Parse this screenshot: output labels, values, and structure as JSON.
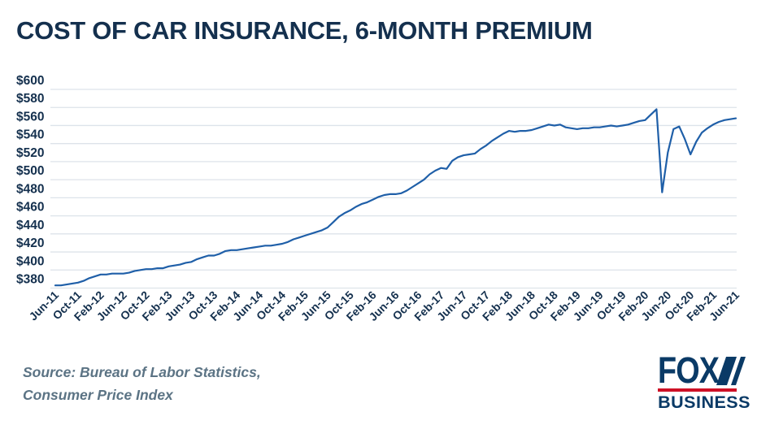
{
  "header": {
    "title": "COST OF CAR INSURANCE, 6-MONTH PREMIUM"
  },
  "source": {
    "line1": "Source: Bureau of Labor Statistics,",
    "line2": "Consumer Price Index"
  },
  "logo": {
    "fox": "FOX",
    "business": "BUSINESS"
  },
  "colors": {
    "title": "#14304e",
    "axis_label": "#14304e",
    "line": "#1f5fa8",
    "grid": "#dde3ea",
    "source_text": "#5b7384",
    "logo_navy": "#0a3a66",
    "logo_red": "#ce1126"
  },
  "chart_data": {
    "type": "line",
    "title": "COST OF CAR INSURANCE, 6-MONTH PREMIUM",
    "unit": "USD, 6-month premium",
    "grid": true,
    "legend": false,
    "ylim": [
      380,
      600
    ],
    "y_ticks": [
      "$600",
      "$580",
      "$560",
      "$540",
      "$520",
      "$500",
      "$480",
      "$460",
      "$440",
      "$420",
      "$400",
      "$380"
    ],
    "x_ticks": [
      "Jun-11",
      "Oct-11",
      "Feb-12",
      "Jun-12",
      "Oct-12",
      "Feb-13",
      "Jun-13",
      "Oct-13",
      "Feb-14",
      "Jun-14",
      "Oct-14",
      "Feb-15",
      "Jun-15",
      "Oct-15",
      "Feb-16",
      "Jun-16",
      "Oct-16",
      "Feb-17",
      "Jun-17",
      "Oct-17",
      "Feb-18",
      "Jun-18",
      "Oct-18",
      "Feb-19",
      "Jun-19",
      "Oct-19",
      "Feb-20",
      "Jun-20",
      "Oct-20",
      "Feb-21",
      "Jun-21"
    ],
    "x_tick_interval_months": 4,
    "start_month": "Jun-11",
    "end_month": "Jun-21",
    "series": [
      {
        "name": "Average 6-month car insurance premium",
        "monthly_values": [
          383,
          383,
          384,
          385,
          386,
          388,
          391,
          393,
          395,
          395,
          396,
          396,
          396,
          397,
          399,
          400,
          401,
          401,
          402,
          402,
          404,
          405,
          406,
          408,
          409,
          412,
          414,
          416,
          416,
          418,
          421,
          422,
          422,
          423,
          424,
          425,
          426,
          427,
          427,
          428,
          429,
          431,
          434,
          436,
          438,
          440,
          442,
          444,
          447,
          453,
          459,
          463,
          466,
          470,
          473,
          475,
          478,
          481,
          483,
          484,
          484,
          485,
          488,
          492,
          496,
          500,
          506,
          510,
          513,
          512,
          521,
          525,
          527,
          528,
          529,
          534,
          538,
          543,
          547,
          551,
          554,
          553,
          554,
          554,
          555,
          557,
          559,
          561,
          560,
          561,
          558,
          557,
          556,
          557,
          557,
          558,
          558,
          559,
          560,
          559,
          560,
          561,
          563,
          565,
          566,
          572,
          578,
          486,
          530,
          556,
          559,
          545,
          528,
          542,
          552,
          557,
          561,
          564,
          566,
          567,
          568
        ]
      }
    ]
  }
}
